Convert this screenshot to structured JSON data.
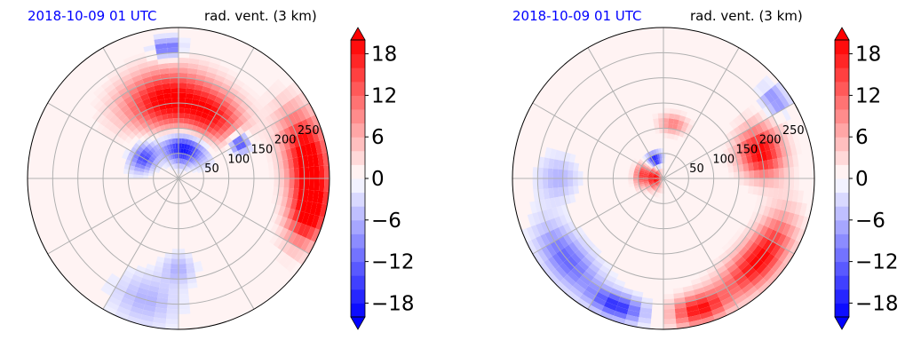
{
  "chart_data": [
    {
      "type": "heatmap",
      "projection": "polar",
      "title_left": "2018-10-09 01 UTC",
      "title_right": "rad. vent. (3 km)",
      "radial_ticks": [
        "50",
        "100",
        "150",
        "200",
        "250"
      ],
      "radial_range": [
        0,
        300
      ],
      "radial_unit": "km",
      "angular_gridlines_deg": [
        0,
        30,
        60,
        90,
        120,
        150,
        180,
        210,
        240,
        270,
        300,
        330
      ],
      "grid": true,
      "colormap": "bwr",
      "colorbar": {
        "range": [
          -20,
          20
        ],
        "ticks": [
          "18",
          "12",
          "6",
          "0",
          "−6",
          "−12",
          "−18"
        ],
        "tick_values": [
          18,
          12,
          6,
          0,
          -6,
          -12,
          -18
        ],
        "extend": "both",
        "low_color": "#0000ff",
        "mid_color": "#ffffff",
        "high_color": "#ff0000"
      },
      "features": [
        {
          "sign": "positive",
          "r": 160,
          "theta_deg": 100,
          "dr": 60,
          "dtheta": 30,
          "amp": 20
        },
        {
          "sign": "positive",
          "r": 140,
          "theta_deg": 60,
          "dr": 50,
          "dtheta": 25,
          "amp": 16
        },
        {
          "sign": "positive",
          "r": 260,
          "theta_deg": 10,
          "dr": 45,
          "dtheta": 20,
          "amp": 22
        },
        {
          "sign": "positive",
          "r": 270,
          "theta_deg": 345,
          "dr": 40,
          "dtheta": 14,
          "amp": 20
        },
        {
          "sign": "negative",
          "r": 60,
          "theta_deg": 80,
          "dr": 30,
          "dtheta": 40,
          "amp": 20
        },
        {
          "sign": "negative",
          "r": 140,
          "theta_deg": 30,
          "dr": 20,
          "dtheta": 8,
          "amp": 18
        },
        {
          "sign": "negative",
          "r": 80,
          "theta_deg": 150,
          "dr": 25,
          "dtheta": 20,
          "amp": 14
        },
        {
          "sign": "negative",
          "r": 260,
          "theta_deg": 95,
          "dr": 20,
          "dtheta": 6,
          "amp": 14
        },
        {
          "sign": "negative",
          "r": 250,
          "theta_deg": 255,
          "dr": 50,
          "dtheta": 15,
          "amp": 6
        },
        {
          "sign": "negative",
          "r": 180,
          "theta_deg": 270,
          "dr": 30,
          "dtheta": 10,
          "amp": 6
        }
      ]
    },
    {
      "type": "heatmap",
      "projection": "polar",
      "title_left": "2018-10-09 01 UTC",
      "title_right": "rad. vent. (3 km)",
      "radial_ticks": [
        "50",
        "100",
        "150",
        "200",
        "250"
      ],
      "radial_range": [
        0,
        300
      ],
      "radial_unit": "km",
      "angular_gridlines_deg": [
        0,
        30,
        60,
        90,
        120,
        150,
        180,
        210,
        240,
        270,
        300,
        330
      ],
      "grid": true,
      "colormap": "bwr",
      "colorbar": {
        "range": [
          -20,
          20
        ],
        "ticks": [
          "18",
          "12",
          "6",
          "0",
          "−6",
          "−12",
          "−18"
        ],
        "tick_values": [
          18,
          12,
          6,
          0,
          -6,
          -12,
          -18
        ],
        "extend": "both",
        "low_color": "#0000ff",
        "mid_color": "#ffffff",
        "high_color": "#ff0000"
      },
      "features": [
        {
          "sign": "positive",
          "r": 15,
          "theta_deg": 180,
          "dr": 18,
          "dtheta": 60,
          "amp": 22
        },
        {
          "sign": "positive",
          "r": 45,
          "theta_deg": 170,
          "dr": 15,
          "dtheta": 30,
          "amp": 14
        },
        {
          "sign": "positive",
          "r": 200,
          "theta_deg": 15,
          "dr": 45,
          "dtheta": 15,
          "amp": 20
        },
        {
          "sign": "positive",
          "r": 250,
          "theta_deg": 320,
          "dr": 40,
          "dtheta": 22,
          "amp": 20
        },
        {
          "sign": "positive",
          "r": 270,
          "theta_deg": 285,
          "dr": 30,
          "dtheta": 12,
          "amp": 18
        },
        {
          "sign": "positive",
          "r": 110,
          "theta_deg": 80,
          "dr": 20,
          "dtheta": 15,
          "amp": 10
        },
        {
          "sign": "negative",
          "r": 40,
          "theta_deg": 115,
          "dr": 15,
          "dtheta": 20,
          "amp": 20
        },
        {
          "sign": "negative",
          "r": 250,
          "theta_deg": 220,
          "dr": 40,
          "dtheta": 18,
          "amp": 12
        },
        {
          "sign": "negative",
          "r": 270,
          "theta_deg": 250,
          "dr": 25,
          "dtheta": 12,
          "amp": 16
        },
        {
          "sign": "negative",
          "r": 210,
          "theta_deg": 180,
          "dr": 40,
          "dtheta": 12,
          "amp": 6
        },
        {
          "sign": "negative",
          "r": 270,
          "theta_deg": 35,
          "dr": 25,
          "dtheta": 6,
          "amp": 10
        }
      ]
    }
  ]
}
